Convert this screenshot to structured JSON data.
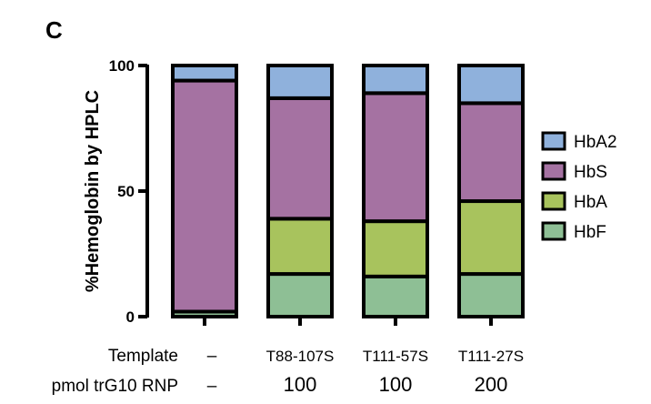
{
  "panel_label": "C",
  "chart_data": {
    "type": "bar",
    "stacked": true,
    "categories": [
      "–",
      "T88-107S",
      "T111-57S",
      "T111-27S"
    ],
    "series": [
      {
        "name": "HbF",
        "color": "#8ebf95",
        "values": [
          2,
          17,
          16,
          17
        ]
      },
      {
        "name": "HbA",
        "color": "#a8c35d",
        "values": [
          0,
          22,
          22,
          29
        ]
      },
      {
        "name": "HbS",
        "color": "#a572a2",
        "values": [
          92,
          48,
          51,
          39
        ]
      },
      {
        "name": "HbA2",
        "color": "#8fb1dc",
        "values": [
          6,
          13,
          11,
          15
        ]
      }
    ],
    "ylabel": "%Hemoglobin by HPLC",
    "ylim": [
      0,
      100
    ],
    "yticks": [
      "0",
      "50",
      "100"
    ],
    "legend": {
      "placement": "right",
      "order": [
        "HbA2",
        "HbS",
        "HbA",
        "HbF"
      ]
    },
    "grid": false
  },
  "rows": {
    "template": {
      "label": "Template",
      "values": [
        "–",
        "T88-107S",
        "T111-57S",
        "T111-27S"
      ]
    },
    "rnp": {
      "label": "pmol trG10 RNP",
      "values": [
        "–",
        "100",
        "100",
        "200"
      ]
    }
  }
}
